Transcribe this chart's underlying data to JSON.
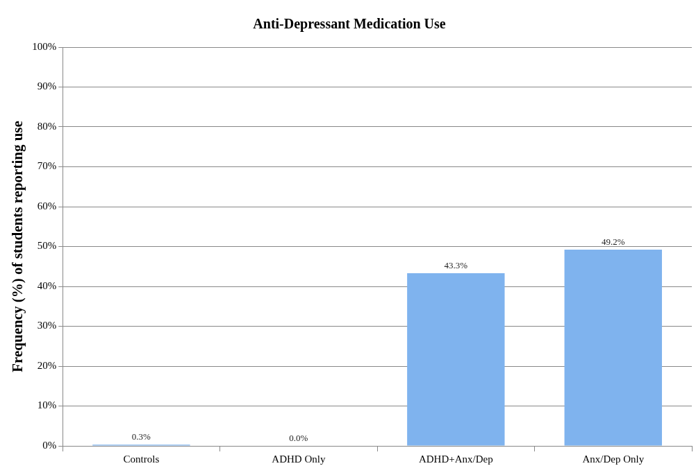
{
  "chart_data": {
    "type": "bar",
    "title": "Anti-Depressant Medication Use",
    "ylabel": "Frequency (%) of students reporting use",
    "categories": [
      "Controls",
      "ADHD Only",
      "ADHD+Anx/Dep",
      "Anx/Dep Only"
    ],
    "values": [
      0.3,
      0,
      43.3,
      49.2
    ],
    "color": "#7fb3ee",
    "value_labels": [
      "0.3%",
      "0.0%",
      "43.3%",
      "49.2%"
    ],
    "ylim": [
      0,
      100
    ],
    "yticks": [
      {
        "value": 0,
        "label": "0%"
      },
      {
        "value": 10,
        "label": "10%"
      },
      {
        "value": 20,
        "label": "20%"
      },
      {
        "value": 30,
        "label": "30%"
      },
      {
        "value": 40,
        "label": "40%"
      },
      {
        "value": 50,
        "label": "50%"
      },
      {
        "value": 60,
        "label": "60%"
      },
      {
        "value": 70,
        "label": "70%"
      },
      {
        "value": 80,
        "label": "80%"
      },
      {
        "value": 90,
        "label": "90%"
      },
      {
        "value": 100,
        "label": "100%"
      }
    ],
    "grid": "y",
    "legend": false
  }
}
